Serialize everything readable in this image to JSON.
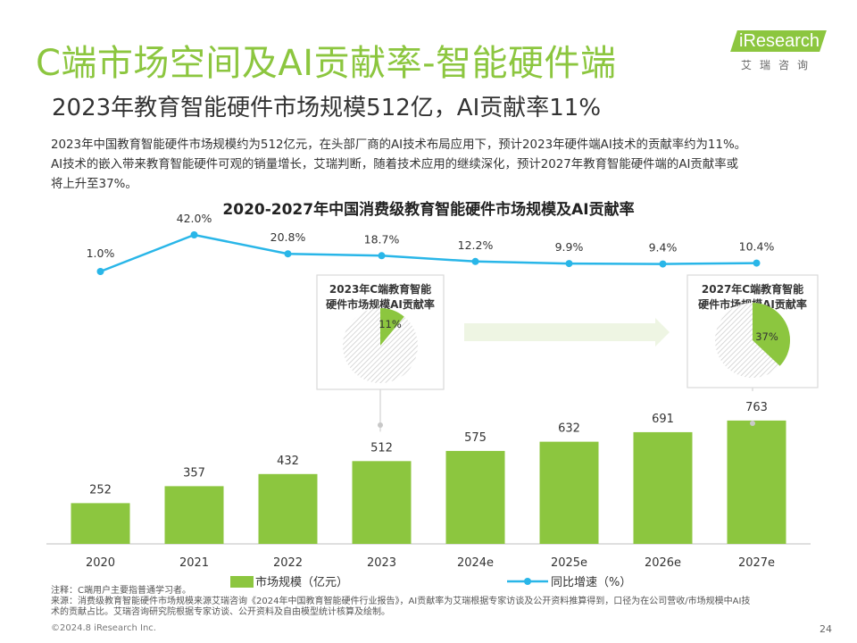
{
  "header": {
    "title": "C端市场空间及AI贡献率-智能硬件端",
    "subtitle": "2023年教育智能硬件市场规模512亿，AI贡献率11%"
  },
  "logo": {
    "text": "iResearch",
    "cn": "艾瑞咨询"
  },
  "description": [
    "2023年中国教育智能硬件市场规模约为512亿元，在头部厂商的AI技术布局应用下，预计2023年硬件端AI技术的贡献率约为11%。",
    "AI技术的嵌入带来教育智能硬件可观的销量增长，艾瑞判断，随着技术应用的继续深化，预计2027年教育智能硬件端的AI贡献率或",
    "将上升至37%。"
  ],
  "chart_data": {
    "type": "bar",
    "title": "2020-2027年中国消费级教育智能硬件市场规模及AI贡献率",
    "categories": [
      "2020",
      "2021",
      "2022",
      "2023",
      "2024e",
      "2025e",
      "2026e",
      "2027e"
    ],
    "series": [
      {
        "name": "市场规模（亿元）",
        "type": "bar",
        "values": [
          252,
          357,
          432,
          512,
          575,
          632,
          691,
          763
        ]
      },
      {
        "name": "同比增速（%）",
        "type": "line",
        "values": [
          1.0,
          42.0,
          20.8,
          18.7,
          12.2,
          9.9,
          9.4,
          10.4
        ],
        "labels": [
          "1.0%",
          "42.0%",
          "20.8%",
          "18.7%",
          "12.2%",
          "9.9%",
          "9.4%",
          "10.4%"
        ]
      }
    ],
    "colors": {
      "bar": "#8cc63f",
      "line": "#29b6e8",
      "pie_rest": "#d9d9d9"
    },
    "insets": [
      {
        "title_lines": [
          "2023年C端教育智能",
          "硬件市场规模AI贡献率"
        ],
        "value": 11,
        "label": "11%",
        "category": "2023"
      },
      {
        "title_lines": [
          "2027年C端教育智能",
          "硬件市场规模AI贡献率"
        ],
        "value": 37,
        "label": "37%",
        "category": "2027e"
      }
    ],
    "legend": {
      "position": "bottom",
      "items": [
        "市场规模（亿元）",
        "同比增速（%）"
      ]
    }
  },
  "footer": {
    "note": "注释：C端用户主要指普通学习者。",
    "source_line1": "来源：消费级教育智能硬件市场规模来源艾瑞咨询《2024年中国教育智能硬件行业报告》，AI贡献率为艾瑞根据专家访谈及公开资料推算得到，口径为在公司营收/市场规模中AI技",
    "source_line2": "术的贡献占比。艾瑞咨询研究院根据专家访谈、公开资料及自由模型统计核算及绘制。",
    "copyright": "©2024.8 iResearch Inc.",
    "page": "24"
  }
}
